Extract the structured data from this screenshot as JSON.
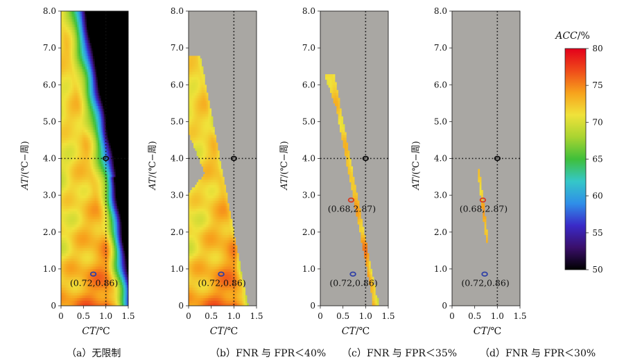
{
  "chart_data": [
    {
      "type": "heatmap",
      "caption": "（a）无限制",
      "xlabel_italic": "CT",
      "xlabel_unit": "/℃",
      "ylabel_italic": "AT",
      "ylabel_unit": "/(℃−周)",
      "xlim": [
        0,
        1.5
      ],
      "ylim": [
        0,
        8
      ],
      "x_ticks": [
        "0",
        "0.5",
        "1.0",
        "1.5"
      ],
      "y_ticks": [
        "0",
        "1.0",
        "2.0",
        "3.0",
        "4.0",
        "5.0",
        "6.0",
        "7.0",
        "8.0"
      ],
      "reference_lines": {
        "x": 1.0,
        "y": 4.0
      },
      "reference_point": {
        "x": 1.0,
        "y": 4.0,
        "color": "#111111"
      },
      "markers": [
        {
          "x": 0.72,
          "y": 0.86,
          "color": "#2f3fa6",
          "label": "(0.72,0.86)"
        }
      ],
      "mask": "none"
    },
    {
      "type": "heatmap",
      "caption": "（b）FNR 与 FPR＜40%",
      "xlabel_italic": "CT",
      "xlabel_unit": "/℃",
      "ylabel_italic": "AT",
      "ylabel_unit": "/(℃−周)",
      "xlim": [
        0,
        1.5
      ],
      "ylim": [
        0,
        8
      ],
      "x_ticks": [
        "0",
        "0.5",
        "1.0",
        "1.5"
      ],
      "y_ticks": [
        "0",
        "1.0",
        "2.0",
        "3.0",
        "4.0",
        "5.0",
        "6.0",
        "7.0",
        "8.0"
      ],
      "reference_lines": {
        "x": 1.0,
        "y": 4.0
      },
      "reference_point": {
        "x": 1.0,
        "y": 4.0,
        "color": "#111111"
      },
      "markers": [
        {
          "x": 0.72,
          "y": 0.86,
          "color": "#2f3fa6",
          "label": "(0.72,0.86)"
        }
      ],
      "mask": "wide"
    },
    {
      "type": "heatmap",
      "caption": "（c）FNR 与 FPR＜35%",
      "xlabel_italic": "CT",
      "xlabel_unit": "/℃",
      "ylabel_italic": "AT",
      "ylabel_unit": "/(℃−周)",
      "xlim": [
        0,
        1.5
      ],
      "ylim": [
        0,
        8
      ],
      "x_ticks": [
        "0",
        "0.5",
        "1.0",
        "1.5"
      ],
      "y_ticks": [
        "0",
        "1.0",
        "2.0",
        "3.0",
        "4.0",
        "5.0",
        "6.0",
        "7.0",
        "8.0"
      ],
      "reference_lines": {
        "x": 1.0,
        "y": 4.0
      },
      "reference_point": {
        "x": 1.0,
        "y": 4.0,
        "color": "#111111"
      },
      "markers": [
        {
          "x": 0.68,
          "y": 2.87,
          "color": "#d63a1e",
          "label": "(0.68,2.87)"
        },
        {
          "x": 0.72,
          "y": 0.86,
          "color": "#2f3fa6",
          "label": "(0.72,0.86)"
        }
      ],
      "mask": "medium"
    },
    {
      "type": "heatmap",
      "caption": "（d）FNR 与 FPR＜30%",
      "xlabel_italic": "CT",
      "xlabel_unit": "/℃",
      "ylabel_italic": "AT",
      "ylabel_unit": "/(℃−周)",
      "xlim": [
        0,
        1.5
      ],
      "ylim": [
        0,
        8
      ],
      "x_ticks": [
        "0",
        "0.5",
        "1.0",
        "1.5"
      ],
      "y_ticks": [
        "0",
        "1.0",
        "2.0",
        "3.0",
        "4.0",
        "5.0",
        "6.0",
        "7.0",
        "8.0"
      ],
      "reference_lines": {
        "x": 1.0,
        "y": 4.0
      },
      "reference_point": {
        "x": 1.0,
        "y": 4.0,
        "color": "#111111"
      },
      "markers": [
        {
          "x": 0.68,
          "y": 2.87,
          "color": "#d63a1e",
          "label": "(0.68,2.87)"
        },
        {
          "x": 0.72,
          "y": 0.86,
          "color": "#2f3fa6",
          "label": "(0.72,0.86)"
        }
      ],
      "mask": "narrow"
    }
  ],
  "colorbar": {
    "title_italic": "ACC",
    "title_unit": "/%",
    "range": [
      50,
      80
    ],
    "ticks": [
      "50",
      "55",
      "60",
      "65",
      "70",
      "75",
      "80"
    ],
    "stops": [
      "#000000",
      "#3a0f6a",
      "#3a2ac8",
      "#2f8fe8",
      "#35c7c8",
      "#3fbf3a",
      "#a9d431",
      "#f0e23a",
      "#f7a21c",
      "#ef4b1a",
      "#e3001b"
    ]
  },
  "style": {
    "masked_color": "#a9a7a3",
    "axis_color": "#222222"
  }
}
